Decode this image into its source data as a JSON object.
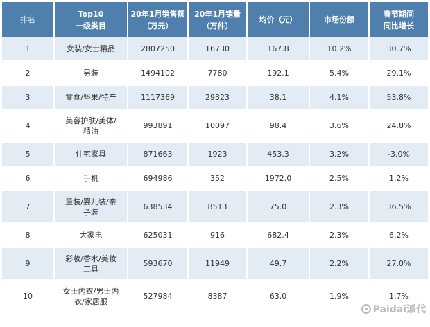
{
  "headers": [
    {
      "line1": "排名",
      "line2": ""
    },
    {
      "line1": "Top10",
      "line2": "一级类目"
    },
    {
      "line1": "20年1月销售额",
      "line2": "（万元）"
    },
    {
      "line1": "20年1月销量",
      "line2": "（万件）"
    },
    {
      "line1": "均价（元）",
      "line2": ""
    },
    {
      "line1": "市场份额",
      "line2": ""
    },
    {
      "line1": "春节期间",
      "line2": "同比增长"
    }
  ],
  "rows": [
    {
      "rank": "1",
      "cat1": "女装/女士精品",
      "cat2": "",
      "sales": "2807250",
      "volume": "16730",
      "price": "167.8",
      "share": "10.2%",
      "growth": "30.7%"
    },
    {
      "rank": "2",
      "cat1": "男装",
      "cat2": "",
      "sales": "1494102",
      "volume": "7780",
      "price": "192.1",
      "share": "5.4%",
      "growth": "29.1%"
    },
    {
      "rank": "3",
      "cat1": "零食/坚果/特产",
      "cat2": "",
      "sales": "1117369",
      "volume": "29323",
      "price": "38.1",
      "share": "4.1%",
      "growth": "53.8%"
    },
    {
      "rank": "4",
      "cat1": "美容护肤/美体/",
      "cat2": "精油",
      "sales": "993891",
      "volume": "10097",
      "price": "98.4",
      "share": "3.6%",
      "growth": "24.8%"
    },
    {
      "rank": "5",
      "cat1": "住宅家具",
      "cat2": "",
      "sales": "871663",
      "volume": "1923",
      "price": "453.3",
      "share": "3.2%",
      "growth": "-3.0%"
    },
    {
      "rank": "6",
      "cat1": "手机",
      "cat2": "",
      "sales": "694986",
      "volume": "352",
      "price": "1972.0",
      "share": "2.5%",
      "growth": "1.2%"
    },
    {
      "rank": "7",
      "cat1": "童装/婴儿装/亲",
      "cat2": "子装",
      "sales": "638534",
      "volume": "8513",
      "price": "75.0",
      "share": "2.3%",
      "growth": "36.5%"
    },
    {
      "rank": "8",
      "cat1": "大家电",
      "cat2": "",
      "sales": "625031",
      "volume": "916",
      "price": "682.4",
      "share": "2.3%",
      "growth": "6.2%"
    },
    {
      "rank": "9",
      "cat1": "彩妆/香水/美妆",
      "cat2": "工具",
      "sales": "593670",
      "volume": "11949",
      "price": "49.7",
      "share": "2.2%",
      "growth": "27.0%"
    },
    {
      "rank": "10",
      "cat1": "女士内衣/男士内",
      "cat2": "衣/家居服",
      "sales": "527984",
      "volume": "8387",
      "price": "63.0",
      "share": "1.9%",
      "growth": "1.7%"
    }
  ],
  "watermark": {
    "text": "Paidai派代",
    "icon": "paidai-logo-icon"
  }
}
